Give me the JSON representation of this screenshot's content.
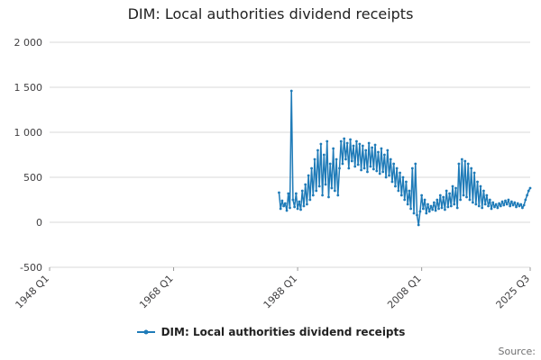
{
  "title": "DIM: Local authorities dividend receipts",
  "legend": {
    "label": "DIM: Local authorities dividend receipts"
  },
  "source": "Source:",
  "colors": {
    "line": "#1f7bb8",
    "grid": "#d9d9d9",
    "tick": "#999999",
    "text": "#414042"
  },
  "chart_data": {
    "type": "line",
    "title": "DIM: Local authorities dividend receipts",
    "xlabel": "",
    "ylabel": "",
    "ylim": [
      -500,
      2000
    ],
    "grid": "horizontal",
    "legend_position": "bottom",
    "x_axis": {
      "start_label": "1948 Q1",
      "end_label": "2025 Q3",
      "total_quarters": 310
    },
    "x_ticks": [
      {
        "label": "1948 Q1",
        "q": 0
      },
      {
        "label": "1968 Q1",
        "q": 80
      },
      {
        "label": "1988 Q1",
        "q": 160
      },
      {
        "label": "2008 Q1",
        "q": 240
      },
      {
        "label": "2025 Q3",
        "q": 310
      }
    ],
    "y_ticks": [
      {
        "label": "2 000",
        "value": 2000
      },
      {
        "label": "1 500",
        "value": 1500
      },
      {
        "label": "1 000",
        "value": 1000
      },
      {
        "label": "500",
        "value": 500
      },
      {
        "label": "0",
        "value": 0
      },
      {
        "label": "-500",
        "value": -500
      }
    ],
    "series": [
      {
        "name": "DIM: Local authorities dividend receipts",
        "frequency": "quarterly",
        "start_period": "1985 Q1",
        "start_quarter_index": 148,
        "values": [
          330,
          150,
          240,
          180,
          210,
          130,
          320,
          160,
          1460,
          250,
          170,
          320,
          150,
          230,
          140,
          350,
          180,
          420,
          200,
          520,
          250,
          600,
          300,
          700,
          350,
          800,
          400,
          870,
          300,
          750,
          420,
          900,
          280,
          650,
          380,
          820,
          350,
          700,
          300,
          600,
          900,
          650,
          930,
          700,
          880,
          600,
          920,
          680,
          850,
          620,
          900,
          640,
          870,
          580,
          850,
          600,
          800,
          560,
          880,
          620,
          830,
          590,
          860,
          570,
          780,
          540,
          820,
          560,
          750,
          500,
          800,
          520,
          700,
          450,
          650,
          400,
          600,
          350,
          550,
          300,
          500,
          250,
          450,
          200,
          350,
          150,
          600,
          100,
          650,
          80,
          -30,
          120,
          300,
          150,
          250,
          100,
          200,
          120,
          180,
          140,
          220,
          130,
          250,
          150,
          300,
          160,
          280,
          140,
          350,
          170,
          320,
          180,
          400,
          200,
          380,
          160,
          650,
          250,
          700,
          300,
          680,
          280,
          650,
          250,
          600,
          220,
          550,
          200,
          450,
          180,
          400,
          160,
          350,
          200,
          300,
          180,
          250,
          150,
          220,
          170,
          200,
          160,
          210,
          180,
          230,
          190,
          240,
          200,
          250,
          180,
          230,
          190,
          220,
          170,
          210,
          180,
          200,
          160,
          190,
          250,
          300,
          350,
          380
        ]
      }
    ]
  }
}
